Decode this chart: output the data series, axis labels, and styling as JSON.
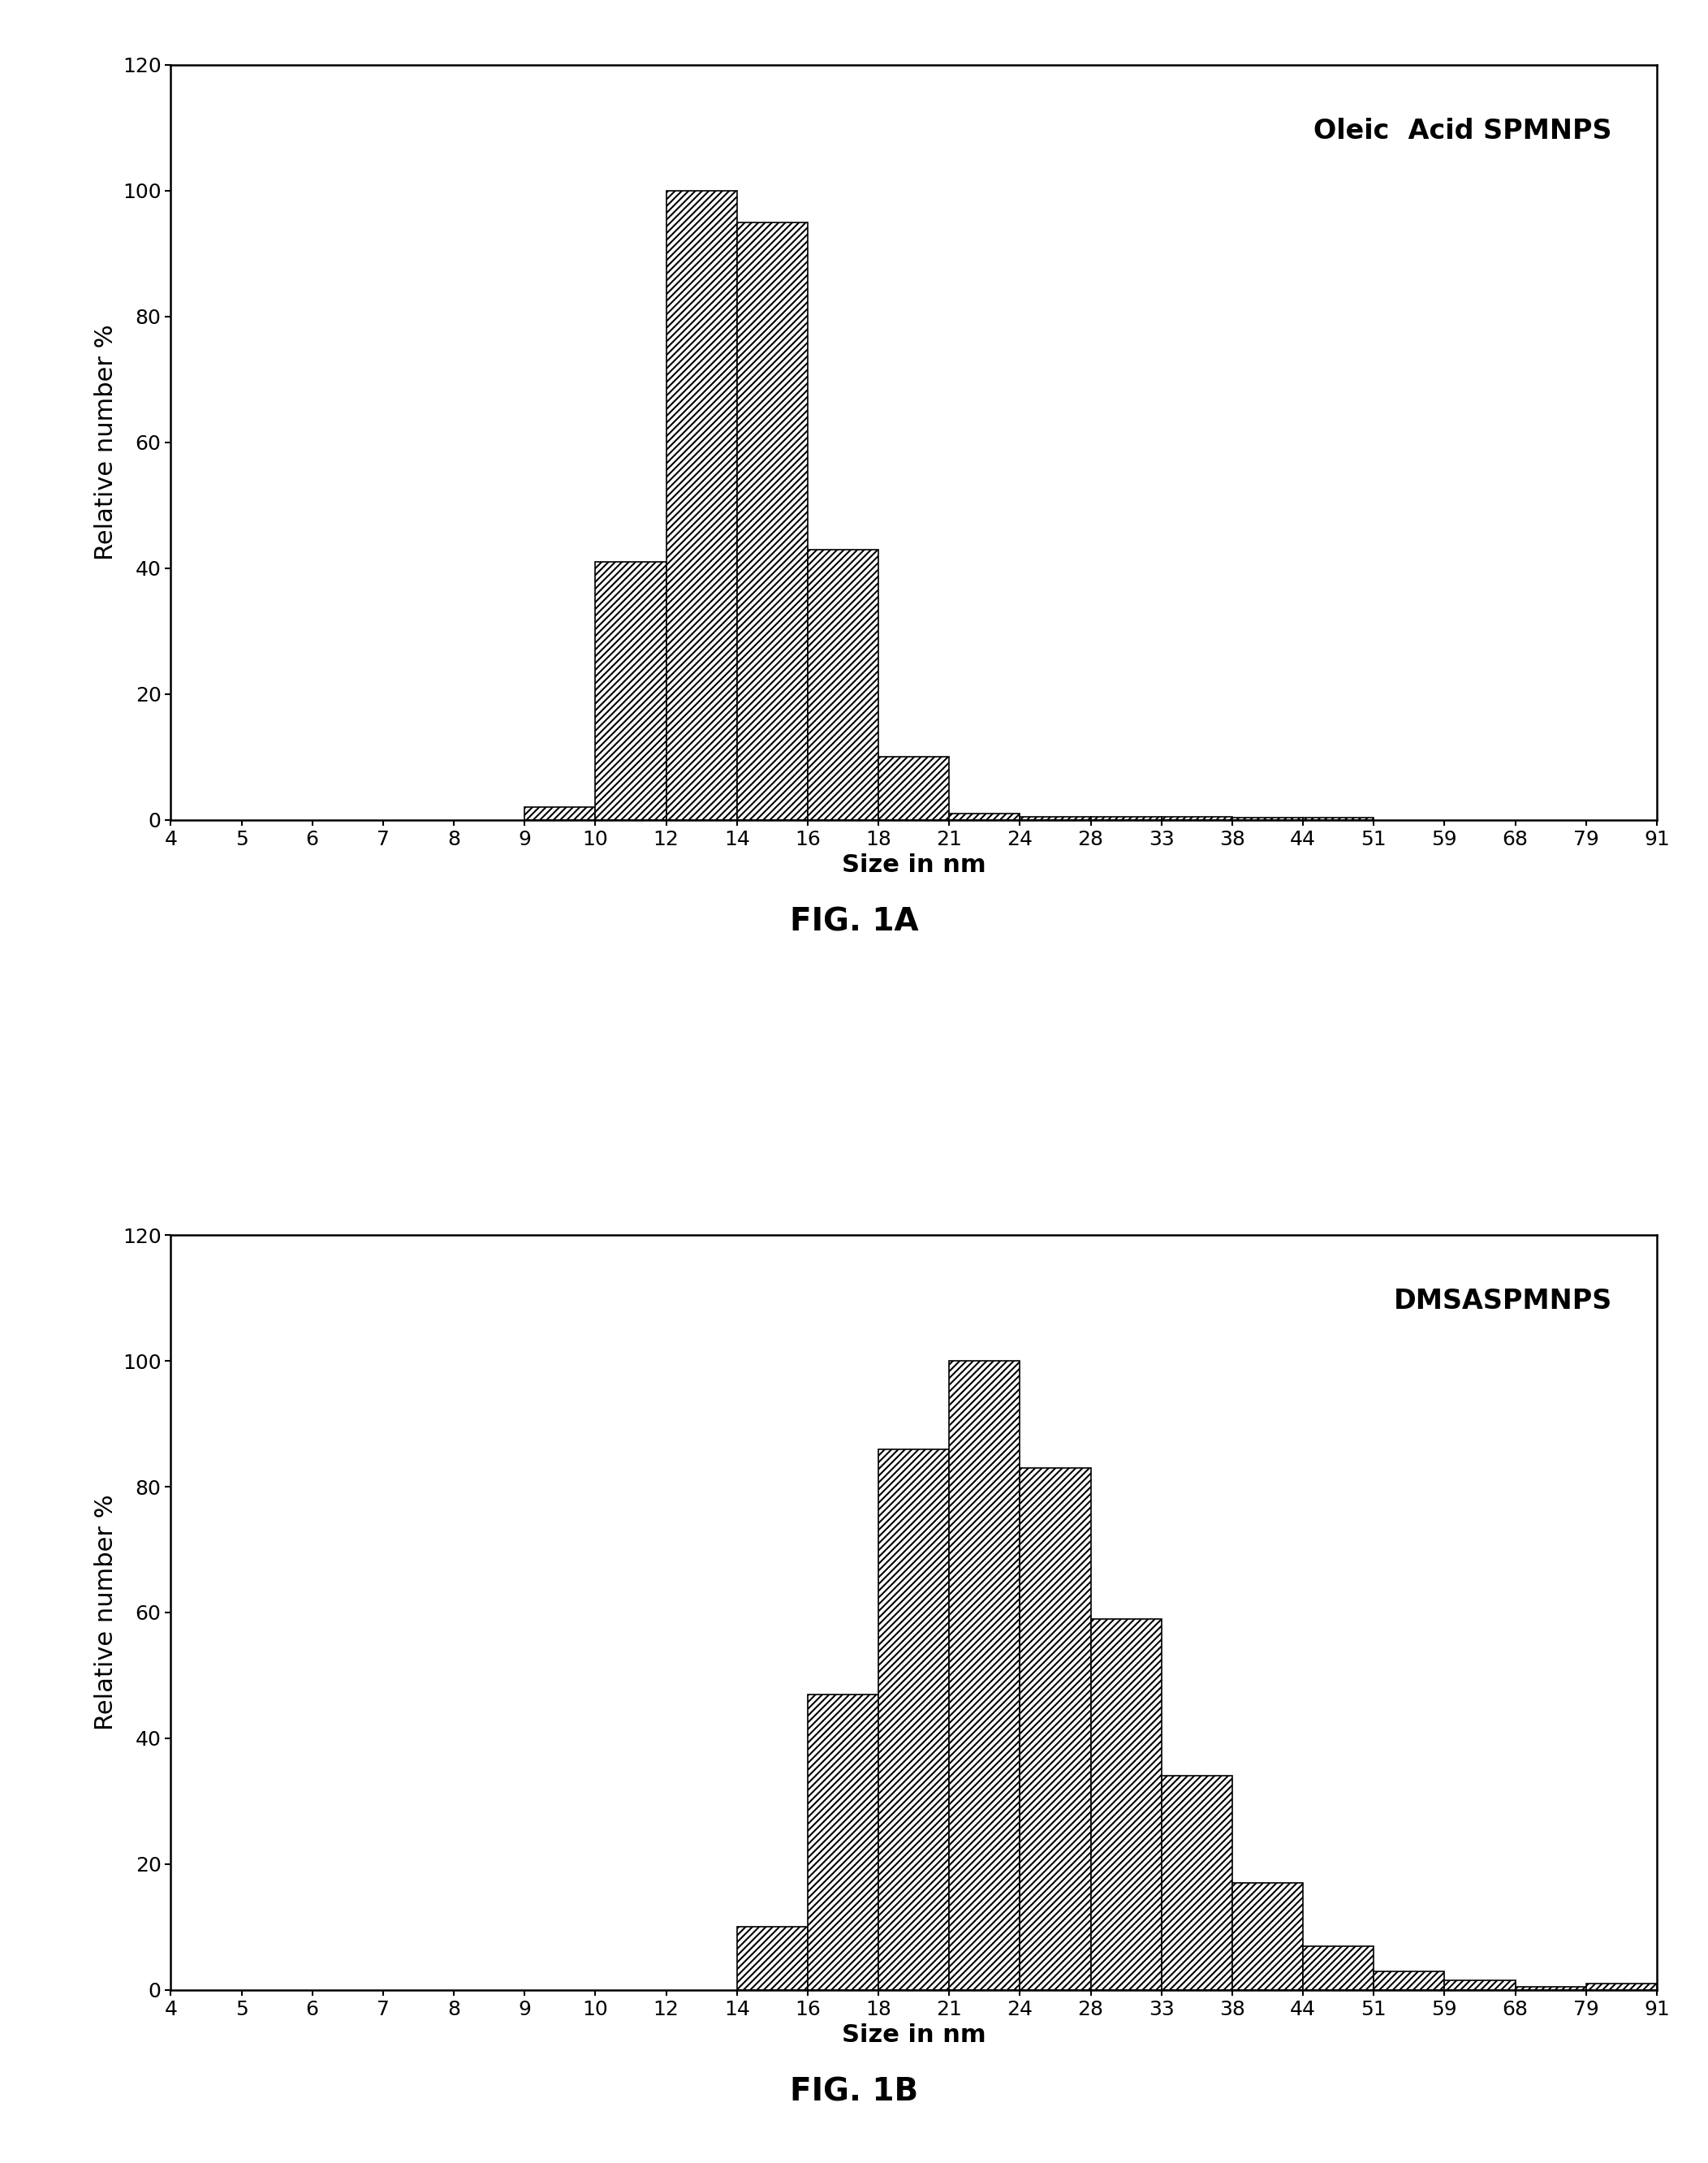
{
  "fig1a": {
    "title": "Oleic  Acid SPMNPS",
    "xlabel": "Size in nm",
    "ylabel": "Relative number %",
    "caption": "FIG. 1A",
    "ylim": [
      0,
      120
    ],
    "yticks": [
      0,
      20,
      40,
      60,
      80,
      100,
      120
    ],
    "bar_lefts": [
      9,
      10,
      12,
      14,
      16,
      18,
      21,
      24,
      28,
      33,
      38,
      44,
      51,
      59,
      68,
      79
    ],
    "bar_rights": [
      10,
      12,
      14,
      16,
      18,
      21,
      24,
      28,
      33,
      38,
      44,
      51,
      59,
      68,
      79,
      91
    ],
    "bar_heights": [
      2,
      41,
      100,
      95,
      43,
      10,
      1,
      0.5,
      0.5,
      0.5,
      0.3,
      0.3,
      0,
      0,
      0,
      0
    ]
  },
  "fig1b": {
    "title": "DMSASPMNPS",
    "xlabel": "Size in nm",
    "ylabel": "Relative number %",
    "caption": "FIG. 1B",
    "ylim": [
      0,
      120
    ],
    "yticks": [
      0,
      20,
      40,
      60,
      80,
      100,
      120
    ],
    "bar_lefts": [
      14,
      16,
      18,
      21,
      24,
      28,
      33,
      38,
      44,
      51,
      59,
      68,
      79
    ],
    "bar_rights": [
      16,
      18,
      21,
      24,
      28,
      33,
      38,
      44,
      51,
      59,
      68,
      79,
      91
    ],
    "bar_heights": [
      10,
      47,
      86,
      100,
      83,
      59,
      34,
      17,
      7,
      3,
      1.5,
      0.5,
      1
    ]
  },
  "xtick_values": [
    4,
    5,
    6,
    7,
    8,
    9,
    10,
    12,
    14,
    16,
    18,
    21,
    24,
    28,
    33,
    38,
    44,
    51,
    59,
    68,
    79,
    91
  ],
  "xtick_labels": [
    "4",
    "5",
    "6",
    "7",
    "8",
    "9",
    "10",
    "12",
    "14",
    "16",
    "18",
    "21",
    "24",
    "28",
    "33",
    "38",
    "44",
    "51",
    "59",
    "68",
    "79",
    "91"
  ],
  "xmin": 4,
  "xmax": 91,
  "hatch_pattern": "////",
  "hatch_linewidth": 1.5,
  "bar_facecolor": "white",
  "bar_edgecolor": "black",
  "bar_linewidth": 1.2,
  "title_fontsize": 24,
  "axis_label_fontsize": 22,
  "tick_fontsize": 18,
  "caption_fontsize": 28,
  "background_color": "white"
}
